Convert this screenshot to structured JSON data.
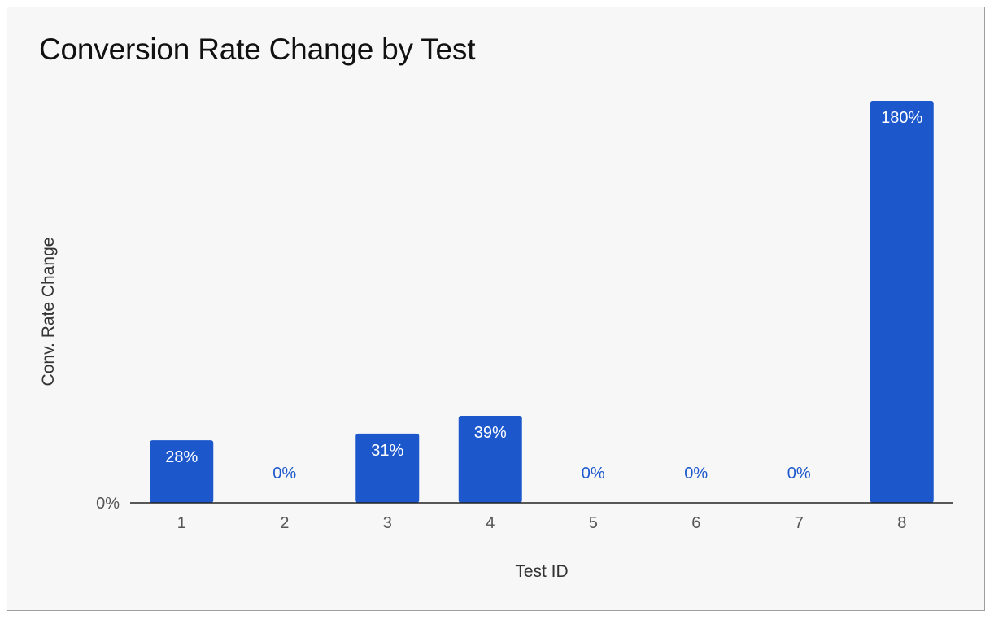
{
  "chart_data": {
    "type": "bar",
    "title": "Conversion Rate Change by Test",
    "xlabel": "Test ID",
    "ylabel": "Conv. Rate Change",
    "categories": [
      "1",
      "2",
      "3",
      "4",
      "5",
      "6",
      "7",
      "8"
    ],
    "values": [
      28,
      0,
      31,
      39,
      0,
      0,
      0,
      180
    ],
    "data_labels": [
      "28%",
      "0%",
      "31%",
      "39%",
      "0%",
      "0%",
      "0%",
      "180%"
    ],
    "yticks": [
      "0%"
    ],
    "ylim": [
      0,
      180
    ],
    "grid": false,
    "legend": "none",
    "bar_color": "#1c58cc",
    "label_inside_color": "#ffffff",
    "label_outside_color": "#1c58cc"
  }
}
